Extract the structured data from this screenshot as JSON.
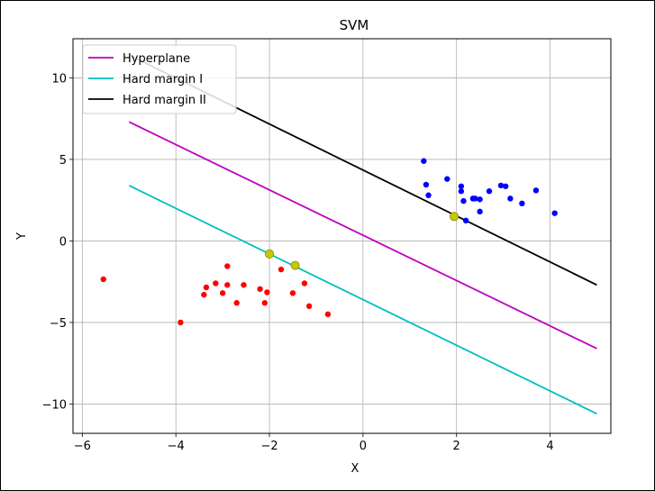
{
  "chart_data": {
    "type": "scatter",
    "title": "SVM",
    "xlabel": "X",
    "ylabel": "Y",
    "xlim": [
      -6.2,
      5.3
    ],
    "ylim": [
      -11.8,
      12.4
    ],
    "xticks": [
      -6,
      -4,
      -2,
      0,
      2,
      4
    ],
    "yticks": [
      -10,
      -5,
      0,
      5,
      10
    ],
    "xtick_labels": [
      "−6",
      "−4",
      "−2",
      "0",
      "2",
      "4"
    ],
    "ytick_labels": [
      "−10",
      "−5",
      "0",
      "5",
      "10"
    ],
    "grid": true,
    "legend_position": "top-left",
    "lines": [
      {
        "name": "Hyperplane",
        "color": "#bf00bf",
        "x": [
          -5,
          5
        ],
        "y": [
          7.3,
          -6.6
        ]
      },
      {
        "name": "Hard margin I",
        "color": "#00bfbf",
        "x": [
          -5,
          5
        ],
        "y": [
          3.4,
          -10.6
        ]
      },
      {
        "name": "Hard margin II",
        "color": "#000000",
        "x": [
          -5,
          5
        ],
        "y": [
          11.4,
          -2.7
        ]
      }
    ],
    "series": [
      {
        "color": "#ff0000",
        "points": [
          [
            -5.55,
            -2.35
          ],
          [
            -3.9,
            -5.0
          ],
          [
            -3.4,
            -3.3
          ],
          [
            -3.35,
            -2.85
          ],
          [
            -3.15,
            -2.6
          ],
          [
            -3.0,
            -3.2
          ],
          [
            -2.9,
            -1.55
          ],
          [
            -2.9,
            -2.7
          ],
          [
            -2.7,
            -3.8
          ],
          [
            -2.55,
            -2.7
          ],
          [
            -2.2,
            -2.95
          ],
          [
            -2.1,
            -3.8
          ],
          [
            -2.05,
            -3.15
          ],
          [
            -1.75,
            -1.75
          ],
          [
            -1.5,
            -3.2
          ],
          [
            -1.25,
            -2.6
          ],
          [
            -1.15,
            -4.0
          ],
          [
            -0.75,
            -4.5
          ]
        ]
      },
      {
        "color": "#0000ff",
        "points": [
          [
            1.3,
            4.9
          ],
          [
            1.35,
            3.45
          ],
          [
            1.4,
            2.8
          ],
          [
            1.8,
            3.8
          ],
          [
            2.1,
            3.35
          ],
          [
            2.1,
            3.05
          ],
          [
            2.15,
            2.45
          ],
          [
            2.2,
            1.25
          ],
          [
            2.35,
            2.6
          ],
          [
            2.4,
            2.6
          ],
          [
            2.5,
            1.8
          ],
          [
            2.5,
            2.55
          ],
          [
            2.7,
            3.05
          ],
          [
            2.95,
            3.4
          ],
          [
            3.05,
            3.35
          ],
          [
            3.15,
            2.6
          ],
          [
            3.4,
            2.3
          ],
          [
            3.7,
            3.1
          ],
          [
            4.1,
            1.7
          ]
        ]
      }
    ],
    "support_vectors": {
      "color": "#c8c800",
      "points": [
        [
          -2.0,
          -0.8
        ],
        [
          -1.45,
          -1.5
        ],
        [
          1.95,
          1.5
        ]
      ]
    }
  }
}
